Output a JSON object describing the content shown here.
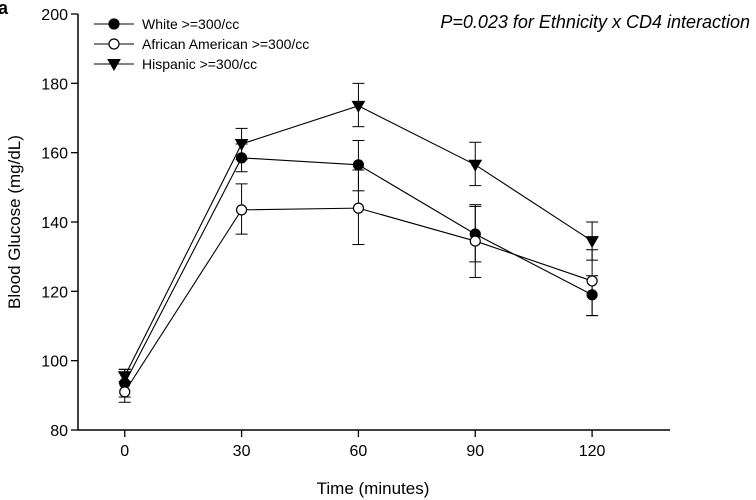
{
  "chart_data": {
    "type": "line",
    "panel_label": "a",
    "title": "",
    "annotation": "P=0.023 for Ethnicity x CD4 interaction",
    "xlabel": "Time (minutes)",
    "ylabel": "Blood Glucose (mg/dL)",
    "x": [
      0,
      30,
      60,
      90,
      120
    ],
    "x_ticks": [
      0,
      30,
      60,
      90,
      120
    ],
    "xlim": [
      -12,
      140
    ],
    "y_ticks": [
      80,
      100,
      120,
      140,
      160,
      180,
      200
    ],
    "ylim": [
      80,
      200
    ],
    "grid": false,
    "legend_position": "top-left",
    "series": [
      {
        "name": "White >=300/cc",
        "marker": "filled-circle",
        "values": [
          93.5,
          158.5,
          156.5,
          136.5,
          119
        ],
        "error_low": [
          89.5,
          154.5,
          149,
          128.5,
          113
        ],
        "error_high": [
          97.5,
          162.5,
          163.5,
          145,
          124.5
        ]
      },
      {
        "name": "African American >=300/cc",
        "marker": "open-circle",
        "values": [
          91,
          143.5,
          144,
          134.5,
          123
        ],
        "error_low": [
          88,
          136.5,
          133.5,
          124,
          113
        ],
        "error_high": [
          94,
          151,
          155,
          144.5,
          132
        ]
      },
      {
        "name": "Hispanic >=300/cc",
        "marker": "filled-triangle-down",
        "values": [
          95.5,
          162.5,
          173.5,
          156.5,
          134.5
        ],
        "error_low": [
          93.5,
          158,
          167.5,
          150.5,
          129
        ],
        "error_high": [
          97.5,
          167,
          180,
          163,
          140
        ]
      }
    ]
  }
}
